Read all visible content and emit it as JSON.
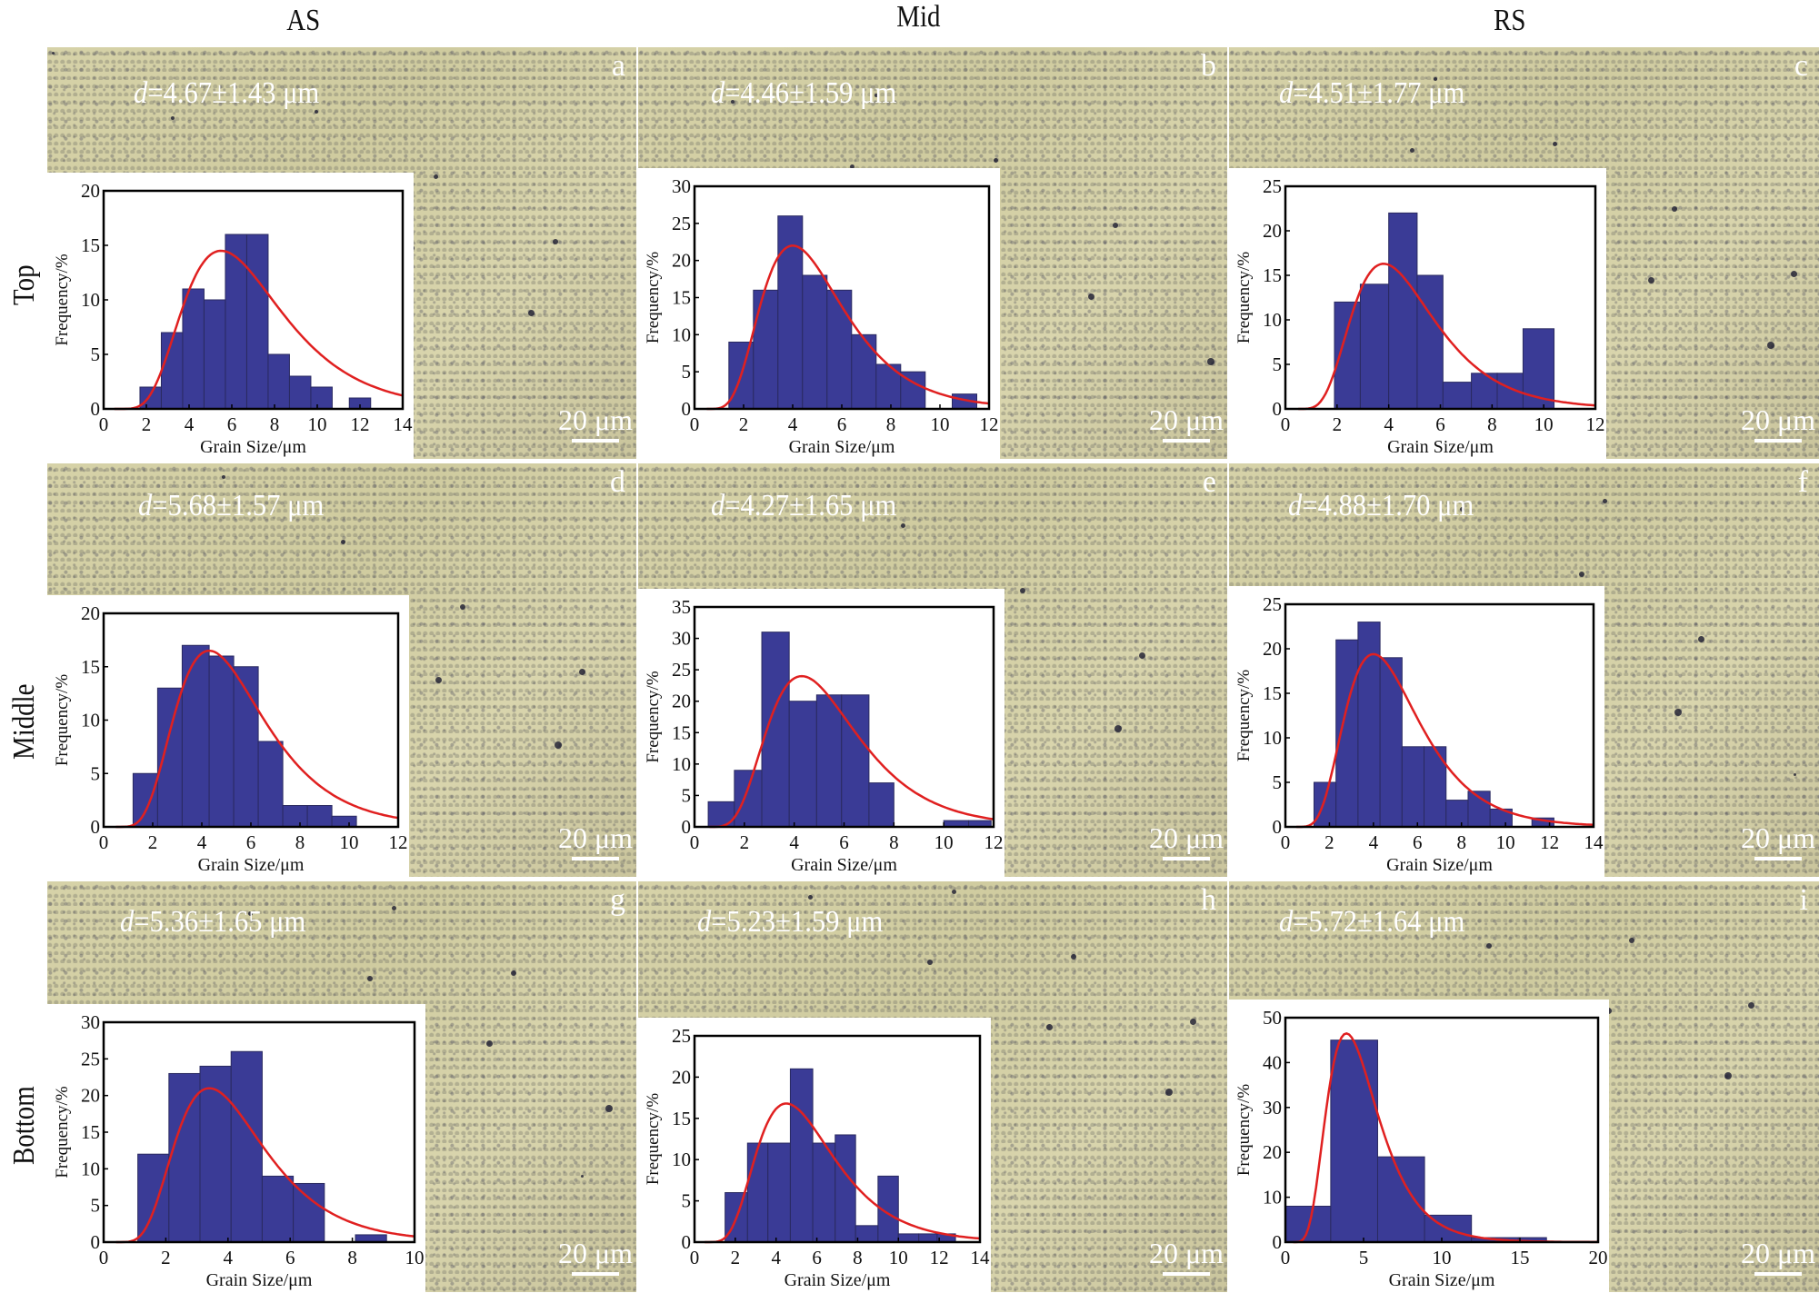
{
  "column_headers": [
    "AS",
    "Mid",
    "RS"
  ],
  "row_labels": [
    "Top",
    "Middle",
    "Bottom"
  ],
  "scale_bar_label": "20 μm",
  "colors": {
    "bar_fill": "#3a3b96",
    "bar_edge": "#2a2a60",
    "fit_line": "#e02020",
    "annotation_text": "#ffffff"
  },
  "panels": [
    {
      "id": "a",
      "d_symbol": "d",
      "d_text": "=4.67±1.43 μm"
    },
    {
      "id": "b",
      "d_symbol": "d",
      "d_text": "=4.46±1.59 μm"
    },
    {
      "id": "c",
      "d_symbol": "d",
      "d_text": "=4.51±1.77 μm"
    },
    {
      "id": "d",
      "d_symbol": "d",
      "d_text": "=5.68±1.57 μm"
    },
    {
      "id": "e",
      "d_symbol": "d",
      "d_text": "=4.27±1.65 μm"
    },
    {
      "id": "f",
      "d_symbol": "d",
      "d_text": "=4.88±1.70 μm"
    },
    {
      "id": "g",
      "d_symbol": "d",
      "d_text": "=5.36±1.65 μm"
    },
    {
      "id": "h",
      "d_symbol": "d",
      "d_text": "=5.23±1.59 μm"
    },
    {
      "id": "i",
      "d_symbol": "d",
      "d_text": "=5.72±1.64 μm"
    }
  ],
  "chart_data": [
    {
      "panel": "a",
      "type": "bar",
      "title": "",
      "xlabel": "Grain Size/μm",
      "ylabel": "Frequency/%",
      "xlim": [
        0,
        14
      ],
      "ylim": [
        0,
        20
      ],
      "xticks": [
        0,
        2,
        4,
        6,
        8,
        10,
        12,
        14
      ],
      "yticks": [
        0,
        5,
        10,
        15,
        20
      ],
      "bins": [
        [
          1.7,
          2.7,
          2
        ],
        [
          2.7,
          3.7,
          7
        ],
        [
          3.7,
          4.7,
          11
        ],
        [
          4.7,
          5.7,
          10
        ],
        [
          5.7,
          6.7,
          16
        ],
        [
          6.7,
          7.7,
          16
        ],
        [
          7.7,
          8.7,
          5
        ],
        [
          8.7,
          9.7,
          3
        ],
        [
          9.7,
          10.7,
          2
        ],
        [
          11.5,
          12.5,
          1
        ]
      ],
      "fit": {
        "type": "lognormal",
        "peak_x": 5.5,
        "peak_y": 14.5,
        "x_start": 0.5,
        "x_end": 14
      }
    },
    {
      "panel": "b",
      "type": "bar",
      "title": "",
      "xlabel": "Grain Size/μm",
      "ylabel": "Frequency/%",
      "xlim": [
        0,
        12
      ],
      "ylim": [
        0,
        30
      ],
      "xticks": [
        0,
        2,
        4,
        6,
        8,
        10,
        12
      ],
      "yticks": [
        0,
        5,
        10,
        15,
        20,
        25,
        30
      ],
      "bins": [
        [
          1.4,
          2.4,
          9
        ],
        [
          2.4,
          3.4,
          16
        ],
        [
          3.4,
          4.4,
          26
        ],
        [
          4.4,
          5.4,
          18
        ],
        [
          5.4,
          6.4,
          16
        ],
        [
          6.4,
          7.4,
          10
        ],
        [
          7.4,
          8.4,
          6
        ],
        [
          8.4,
          9.4,
          5
        ],
        [
          10.5,
          11.5,
          2
        ]
      ],
      "fit": {
        "type": "lognormal",
        "peak_x": 4.0,
        "peak_y": 22,
        "x_start": 0.5,
        "x_end": 12
      }
    },
    {
      "panel": "c",
      "type": "bar",
      "title": "",
      "xlabel": "Grain Size/μm",
      "ylabel": "Frequency/%",
      "xlim": [
        0,
        12
      ],
      "ylim": [
        0,
        25
      ],
      "xticks": [
        0,
        2,
        4,
        6,
        8,
        10,
        12
      ],
      "yticks": [
        0,
        5,
        10,
        15,
        20,
        25
      ],
      "bins": [
        [
          1.9,
          2.9,
          12
        ],
        [
          2.9,
          4.0,
          14
        ],
        [
          4.0,
          5.1,
          22
        ],
        [
          5.1,
          6.1,
          15
        ],
        [
          6.1,
          7.2,
          3
        ],
        [
          7.2,
          8.2,
          4
        ],
        [
          8.2,
          9.2,
          4
        ],
        [
          9.2,
          10.4,
          9
        ]
      ],
      "fit": {
        "type": "lognormal",
        "peak_x": 3.8,
        "peak_y": 16.3,
        "x_start": 0.5,
        "x_end": 12
      }
    },
    {
      "panel": "d",
      "type": "bar",
      "title": "",
      "xlabel": "Grain Size/μm",
      "ylabel": "Frequency/%",
      "xlim": [
        0,
        12
      ],
      "ylim": [
        0,
        20
      ],
      "xticks": [
        0,
        2,
        4,
        6,
        8,
        10,
        12
      ],
      "yticks": [
        0,
        5,
        10,
        15,
        20
      ],
      "bins": [
        [
          1.2,
          2.2,
          5
        ],
        [
          2.2,
          3.2,
          13
        ],
        [
          3.2,
          4.3,
          17
        ],
        [
          4.3,
          5.3,
          16
        ],
        [
          5.3,
          6.3,
          15
        ],
        [
          6.3,
          7.3,
          8
        ],
        [
          7.3,
          8.3,
          2
        ],
        [
          8.3,
          9.3,
          2
        ],
        [
          9.3,
          10.3,
          1
        ]
      ],
      "fit": {
        "type": "lognormal",
        "peak_x": 4.3,
        "peak_y": 16.5,
        "x_start": 0.5,
        "x_end": 12
      }
    },
    {
      "panel": "e",
      "type": "bar",
      "title": "",
      "xlabel": "Grain Size/μm",
      "ylabel": "Frequency/%",
      "xlim": [
        0,
        12
      ],
      "ylim": [
        0,
        35
      ],
      "xticks": [
        0,
        2,
        4,
        6,
        8,
        10,
        12
      ],
      "yticks": [
        0,
        5,
        10,
        15,
        20,
        25,
        30,
        35
      ],
      "bins": [
        [
          0.55,
          1.6,
          4
        ],
        [
          1.6,
          2.7,
          9
        ],
        [
          2.7,
          3.8,
          31
        ],
        [
          3.8,
          4.9,
          20
        ],
        [
          4.9,
          5.9,
          21
        ],
        [
          5.9,
          7.0,
          21
        ],
        [
          7.0,
          8.0,
          7
        ],
        [
          10.0,
          11.0,
          1
        ],
        [
          11.0,
          11.9,
          1
        ]
      ],
      "fit": {
        "type": "lognormal",
        "peak_x": 4.3,
        "peak_y": 24,
        "x_start": 0.6,
        "x_end": 12
      }
    },
    {
      "panel": "f",
      "type": "bar",
      "title": "",
      "xlabel": "Grain Size/μm",
      "ylabel": "Frequency/%",
      "xlim": [
        0,
        14
      ],
      "ylim": [
        0,
        25
      ],
      "xticks": [
        0,
        2,
        4,
        6,
        8,
        10,
        12,
        14
      ],
      "yticks": [
        0,
        5,
        10,
        15,
        20,
        25
      ],
      "bins": [
        [
          1.3,
          2.3,
          5
        ],
        [
          2.3,
          3.3,
          21
        ],
        [
          3.3,
          4.3,
          23
        ],
        [
          4.3,
          5.3,
          19
        ],
        [
          5.3,
          6.3,
          9
        ],
        [
          6.3,
          7.3,
          9
        ],
        [
          7.3,
          8.3,
          3
        ],
        [
          8.3,
          9.3,
          4
        ],
        [
          9.3,
          10.3,
          2
        ],
        [
          11.2,
          12.2,
          1
        ]
      ],
      "fit": {
        "type": "lognormal",
        "peak_x": 4.0,
        "peak_y": 19.4,
        "x_start": 0.5,
        "x_end": 14
      }
    },
    {
      "panel": "g",
      "type": "bar",
      "title": "",
      "xlabel": "Grain Size/μm",
      "ylabel": "Frequency/%",
      "xlim": [
        0,
        10
      ],
      "ylim": [
        0,
        30
      ],
      "xticks": [
        0,
        2,
        4,
        6,
        8,
        10
      ],
      "yticks": [
        0,
        5,
        10,
        15,
        20,
        25,
        30
      ],
      "bins": [
        [
          1.1,
          2.1,
          12
        ],
        [
          2.1,
          3.1,
          23
        ],
        [
          3.1,
          4.1,
          24
        ],
        [
          4.1,
          5.1,
          26
        ],
        [
          5.1,
          6.1,
          9
        ],
        [
          6.1,
          7.1,
          8
        ],
        [
          8.1,
          9.1,
          1
        ]
      ],
      "fit": {
        "type": "lognormal",
        "peak_x": 3.4,
        "peak_y": 21,
        "x_start": 0.4,
        "x_end": 10
      }
    },
    {
      "panel": "h",
      "type": "bar",
      "title": "",
      "xlabel": "Grain Size/μm",
      "ylabel": "Frequency/%",
      "xlim": [
        0,
        14
      ],
      "ylim": [
        0,
        25
      ],
      "xticks": [
        0,
        2,
        4,
        6,
        8,
        10,
        12,
        14
      ],
      "yticks": [
        0,
        5,
        10,
        15,
        20,
        25
      ],
      "bins": [
        [
          1.5,
          2.6,
          6
        ],
        [
          2.6,
          3.6,
          12
        ],
        [
          3.6,
          4.7,
          12
        ],
        [
          4.7,
          5.8,
          21
        ],
        [
          5.8,
          6.9,
          12
        ],
        [
          6.9,
          7.9,
          13
        ],
        [
          7.9,
          9.0,
          2
        ],
        [
          9.0,
          10.0,
          8
        ],
        [
          10.0,
          11.0,
          1
        ],
        [
          11.0,
          11.9,
          1
        ],
        [
          11.9,
          12.8,
          1
        ]
      ],
      "fit": {
        "type": "lognormal",
        "peak_x": 4.5,
        "peak_y": 16.8,
        "x_start": 0.5,
        "x_end": 14
      }
    },
    {
      "panel": "i",
      "type": "bar",
      "title": "",
      "xlabel": "Grain Size/μm",
      "ylabel": "Frequency/%",
      "xlim": [
        0,
        20
      ],
      "ylim": [
        0,
        50
      ],
      "xticks": [
        0,
        5,
        10,
        15,
        20
      ],
      "yticks": [
        0,
        10,
        20,
        30,
        40,
        50
      ],
      "bins": [
        [
          -0.1,
          2.9,
          8
        ],
        [
          2.9,
          5.9,
          45
        ],
        [
          5.9,
          8.9,
          19
        ],
        [
          8.9,
          11.9,
          6
        ],
        [
          11.9,
          14.9,
          1
        ],
        [
          14.9,
          16.7,
          1
        ]
      ],
      "fit": {
        "type": "lognormal",
        "peak_x": 3.9,
        "peak_y": 46.5,
        "x_start": 0.5,
        "x_end": 20
      }
    }
  ]
}
